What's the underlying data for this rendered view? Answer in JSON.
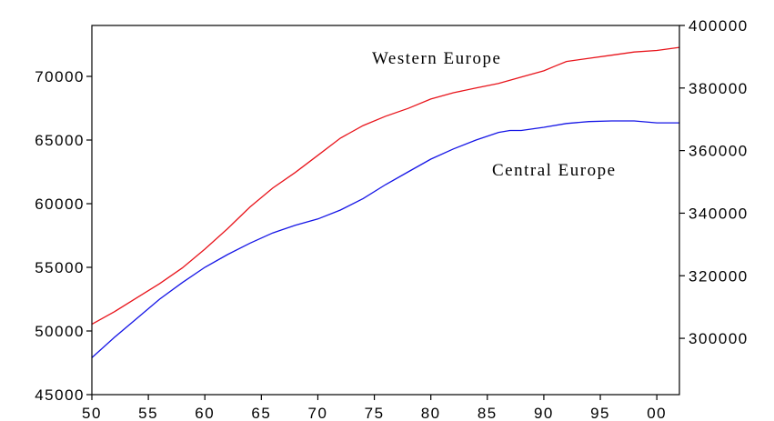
{
  "chart_data": {
    "type": "line",
    "title": "",
    "xlabel": "",
    "ylabel": "",
    "y2label": "",
    "grid": false,
    "legend": "inline labels",
    "x_tick_labels": [
      "50",
      "55",
      "60",
      "65",
      "70",
      "75",
      "80",
      "85",
      "90",
      "95",
      "00"
    ],
    "x_ticks": [
      1950,
      1955,
      1960,
      1965,
      1970,
      1975,
      1980,
      1985,
      1990,
      1995,
      2000
    ],
    "xlim": [
      1950,
      2002
    ],
    "left_axis": {
      "ylim": [
        45000,
        74000
      ],
      "ticks": [
        45000,
        50000,
        55000,
        60000,
        65000,
        70000
      ]
    },
    "right_axis": {
      "ylim": [
        282000,
        400000
      ],
      "ticks": [
        300000,
        320000,
        340000,
        360000,
        380000,
        400000
      ]
    },
    "series": [
      {
        "name": "Western Europe",
        "axis": "right",
        "color": "#e8141b",
        "x": [
          1950,
          1952,
          1954,
          1956,
          1958,
          1960,
          1962,
          1964,
          1966,
          1968,
          1970,
          1972,
          1974,
          1976,
          1978,
          1980,
          1982,
          1984,
          1986,
          1988,
          1990,
          1991,
          1992,
          1994,
          1996,
          1998,
          2000,
          2002
        ],
        "y": [
          304500,
          308500,
          313000,
          317500,
          322500,
          328500,
          335000,
          342000,
          348000,
          353000,
          358500,
          364000,
          368000,
          371000,
          373500,
          376500,
          378500,
          380000,
          381500,
          383500,
          385500,
          387000,
          388500,
          389500,
          390500,
          391500,
          392000,
          393000
        ]
      },
      {
        "name": "Central Europe",
        "axis": "left",
        "color": "#1515e6",
        "x": [
          1950,
          1952,
          1954,
          1956,
          1958,
          1960,
          1962,
          1964,
          1966,
          1968,
          1970,
          1972,
          1974,
          1976,
          1978,
          1980,
          1982,
          1984,
          1986,
          1987,
          1988,
          1990,
          1992,
          1994,
          1996,
          1998,
          2000,
          2002
        ],
        "y": [
          47900,
          49500,
          51000,
          52500,
          53800,
          55000,
          56000,
          56900,
          57700,
          58300,
          58800,
          59500,
          60400,
          61500,
          62500,
          63500,
          64300,
          65000,
          65600,
          65750,
          65750,
          66000,
          66300,
          66450,
          66500,
          66500,
          66350,
          66350
        ]
      }
    ]
  }
}
